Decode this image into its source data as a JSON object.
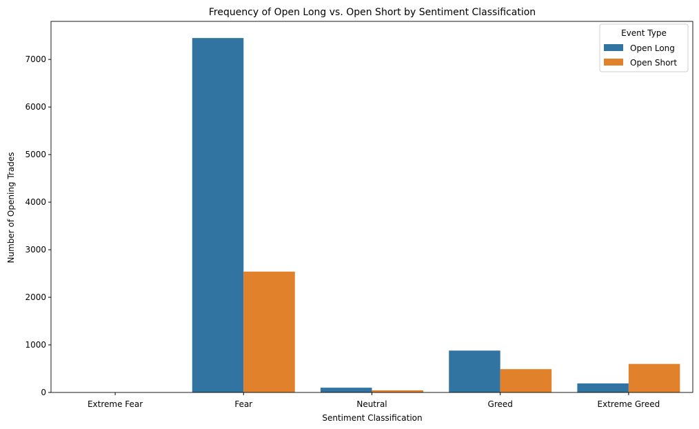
{
  "chart_data": {
    "type": "bar",
    "title": "Frequency of Open Long vs. Open Short by Sentiment Classification",
    "xlabel": "Sentiment Classification",
    "ylabel": "Number of Opening Trades",
    "categories": [
      "Extreme Fear",
      "Fear",
      "Neutral",
      "Greed",
      "Extreme Greed"
    ],
    "series": [
      {
        "name": "Open Long",
        "color": "#3274a1",
        "values": [
          0,
          7450,
          100,
          880,
          190
        ]
      },
      {
        "name": "Open Short",
        "color": "#e1812c",
        "values": [
          0,
          2540,
          45,
          490,
          600
        ]
      }
    ],
    "ylim": [
      0,
      7800
    ],
    "yticks": [
      0,
      1000,
      2000,
      3000,
      4000,
      5000,
      6000,
      7000
    ],
    "grid": false,
    "legend": {
      "title": "Event Type",
      "position": "top-right"
    }
  }
}
